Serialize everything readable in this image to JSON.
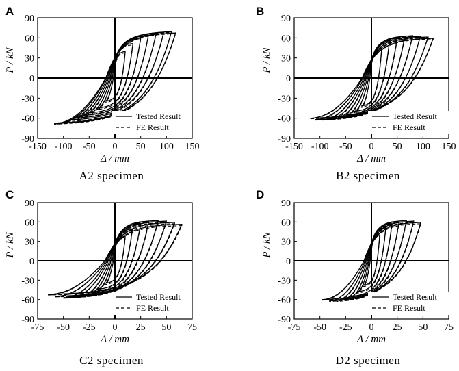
{
  "chart_data": [
    {
      "panel": "A",
      "type": "line",
      "caption": "A2 specimen",
      "xlabel": "Δ / mm",
      "ylabel": "P / kN",
      "xlim": [
        -150,
        150
      ],
      "ylim": [
        -90,
        90
      ],
      "xticks": [
        -150,
        -100,
        -50,
        0,
        50,
        100,
        150
      ],
      "yticks": [
        90,
        60,
        30,
        0,
        -30,
        -60,
        -90
      ],
      "legend": {
        "placement": "bottom-right"
      },
      "series": [
        {
          "name": "Tested Result",
          "style": "solid",
          "loops": [
            {
              "amp": 20,
              "pp": 40,
              "pn": -35
            },
            {
              "amp": 35,
              "pp": 52,
              "pn": -45
            },
            {
              "amp": 50,
              "pp": 60,
              "pn": -52
            },
            {
              "amp": 65,
              "pp": 64,
              "pn": -56
            },
            {
              "amp": 80,
              "pp": 67,
              "pn": -60
            },
            {
              "amp": 95,
              "pp": 69,
              "pn": -63
            },
            {
              "amp": 110,
              "pp": 70,
              "pn": -67
            },
            {
              "amp": 118,
              "pp": 68,
              "pn": -68
            }
          ]
        },
        {
          "name": "FE Result",
          "style": "dashed",
          "loops": [
            {
              "amp": 20,
              "pp": 38,
              "pn": -37
            },
            {
              "amp": 35,
              "pp": 50,
              "pn": -47
            },
            {
              "amp": 50,
              "pp": 58,
              "pn": -54
            },
            {
              "amp": 65,
              "pp": 63,
              "pn": -58
            },
            {
              "amp": 80,
              "pp": 66,
              "pn": -62
            },
            {
              "amp": 95,
              "pp": 68,
              "pn": -65
            },
            {
              "amp": 110,
              "pp": 69,
              "pn": -68
            },
            {
              "amp": 118,
              "pp": 67,
              "pn": -69
            }
          ]
        }
      ]
    },
    {
      "panel": "B",
      "type": "line",
      "caption": "B2 specimen",
      "xlabel": "Δ / mm",
      "ylabel": "P / kN",
      "xlim": [
        -150,
        150
      ],
      "ylim": [
        -90,
        90
      ],
      "xticks": [
        -150,
        -100,
        -50,
        0,
        50,
        100,
        150
      ],
      "yticks": [
        90,
        60,
        30,
        0,
        -30,
        -60,
        -90
      ],
      "legend": {
        "placement": "bottom-right"
      },
      "series": [
        {
          "name": "Tested Result",
          "style": "solid",
          "loops": [
            {
              "amp": 20,
              "pp": 45,
              "pn": -42
            },
            {
              "amp": 35,
              "pp": 55,
              "pn": -50
            },
            {
              "amp": 50,
              "pp": 60,
              "pn": -55
            },
            {
              "amp": 65,
              "pp": 63,
              "pn": -58
            },
            {
              "amp": 80,
              "pp": 64,
              "pn": -60
            },
            {
              "amp": 95,
              "pp": 63,
              "pn": -62
            },
            {
              "amp": 110,
              "pp": 62,
              "pn": -62
            },
            {
              "amp": 120,
              "pp": 60,
              "pn": -60
            }
          ]
        },
        {
          "name": "FE Result",
          "style": "dashed",
          "loops": [
            {
              "amp": 20,
              "pp": 43,
              "pn": -44
            },
            {
              "amp": 35,
              "pp": 53,
              "pn": -52
            },
            {
              "amp": 50,
              "pp": 58,
              "pn": -57
            },
            {
              "amp": 65,
              "pp": 62,
              "pn": -60
            },
            {
              "amp": 80,
              "pp": 63,
              "pn": -62
            },
            {
              "amp": 95,
              "pp": 62,
              "pn": -63
            },
            {
              "amp": 110,
              "pp": 61,
              "pn": -63
            },
            {
              "amp": 120,
              "pp": 59,
              "pn": -61
            }
          ]
        }
      ]
    },
    {
      "panel": "C",
      "type": "line",
      "caption": "C2 specimen",
      "xlabel": "Δ / mm",
      "ylabel": "P / kN",
      "xlim": [
        -75,
        75
      ],
      "ylim": [
        -90,
        90
      ],
      "xticks": [
        -75,
        -50,
        -25,
        0,
        25,
        50,
        75
      ],
      "yticks": [
        90,
        60,
        30,
        0,
        -30,
        -60,
        -90
      ],
      "legend": {
        "placement": "bottom-right"
      },
      "series": [
        {
          "name": "Tested Result",
          "style": "solid",
          "loops": [
            {
              "amp": 10,
              "pp": 38,
              "pn": -35
            },
            {
              "amp": 17,
              "pp": 50,
              "pn": -44
            },
            {
              "amp": 25,
              "pp": 58,
              "pn": -50
            },
            {
              "amp": 33,
              "pp": 62,
              "pn": -54
            },
            {
              "amp": 42,
              "pp": 63,
              "pn": -56
            },
            {
              "amp": 50,
              "pp": 62,
              "pn": -57
            },
            {
              "amp": 58,
              "pp": 60,
              "pn": -55
            },
            {
              "amp": 65,
              "pp": 57,
              "pn": -52
            }
          ]
        },
        {
          "name": "FE Result",
          "style": "dashed",
          "loops": [
            {
              "amp": 10,
              "pp": 36,
              "pn": -37
            },
            {
              "amp": 17,
              "pp": 48,
              "pn": -46
            },
            {
              "amp": 25,
              "pp": 56,
              "pn": -52
            },
            {
              "amp": 33,
              "pp": 60,
              "pn": -56
            },
            {
              "amp": 42,
              "pp": 61,
              "pn": -57
            },
            {
              "amp": 50,
              "pp": 60,
              "pn": -58
            },
            {
              "amp": 58,
              "pp": 58,
              "pn": -56
            },
            {
              "amp": 65,
              "pp": 55,
              "pn": -53
            }
          ]
        }
      ]
    },
    {
      "panel": "D",
      "type": "line",
      "caption": "D2 specimen",
      "xlabel": "Δ / mm",
      "ylabel": "P / kN",
      "xlim": [
        -75,
        75
      ],
      "ylim": [
        -90,
        90
      ],
      "xticks": [
        -75,
        -50,
        -25,
        0,
        25,
        50,
        75
      ],
      "yticks": [
        90,
        60,
        30,
        0,
        -30,
        -60,
        -90
      ],
      "legend": {
        "placement": "bottom-right"
      },
      "series": [
        {
          "name": "Tested Result",
          "style": "solid",
          "loops": [
            {
              "amp": 8,
              "pp": 40,
              "pn": -38
            },
            {
              "amp": 14,
              "pp": 52,
              "pn": -48
            },
            {
              "amp": 20,
              "pp": 58,
              "pn": -55
            },
            {
              "amp": 27,
              "pp": 62,
              "pn": -59
            },
            {
              "amp": 34,
              "pp": 63,
              "pn": -61
            },
            {
              "amp": 41,
              "pp": 62,
              "pn": -62
            },
            {
              "amp": 48,
              "pp": 60,
              "pn": -60
            }
          ]
        },
        {
          "name": "FE Result",
          "style": "dashed",
          "loops": [
            {
              "amp": 8,
              "pp": 38,
              "pn": -40
            },
            {
              "amp": 14,
              "pp": 50,
              "pn": -50
            },
            {
              "amp": 20,
              "pp": 56,
              "pn": -57
            },
            {
              "amp": 27,
              "pp": 60,
              "pn": -61
            },
            {
              "amp": 34,
              "pp": 61,
              "pn": -63
            },
            {
              "amp": 41,
              "pp": 60,
              "pn": -63
            },
            {
              "amp": 48,
              "pp": 58,
              "pn": -61
            }
          ]
        }
      ]
    }
  ]
}
